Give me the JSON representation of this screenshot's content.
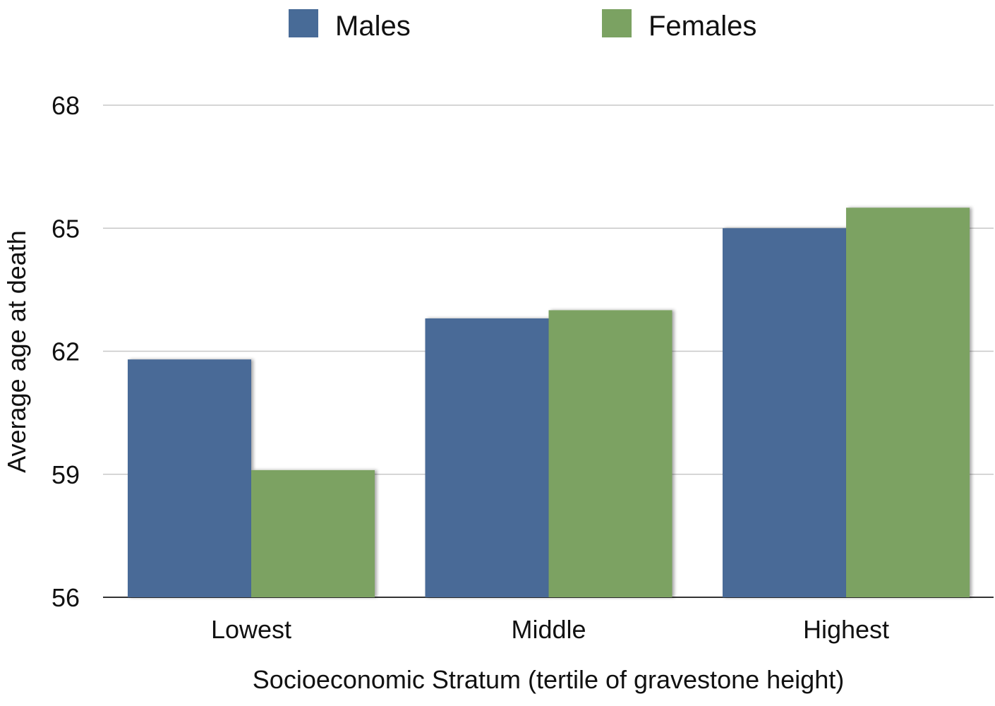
{
  "chart_data": {
    "type": "bar",
    "categories": [
      "Lowest",
      "Middle",
      "Highest"
    ],
    "series": [
      {
        "name": "Males",
        "values": [
          61.8,
          62.8,
          65.0
        ],
        "color": "#486b97"
      },
      {
        "name": "Females",
        "values": [
          59.1,
          63.0,
          65.5
        ],
        "color": "#7ba262"
      }
    ],
    "xlabel": "Socioeconomic Stratum (tertile of gravestone height)",
    "ylabel": "Average age at death",
    "ylim": [
      56,
      68
    ],
    "yticks": [
      56,
      59,
      62,
      65,
      68
    ],
    "grid": true,
    "legend_position": "top"
  }
}
